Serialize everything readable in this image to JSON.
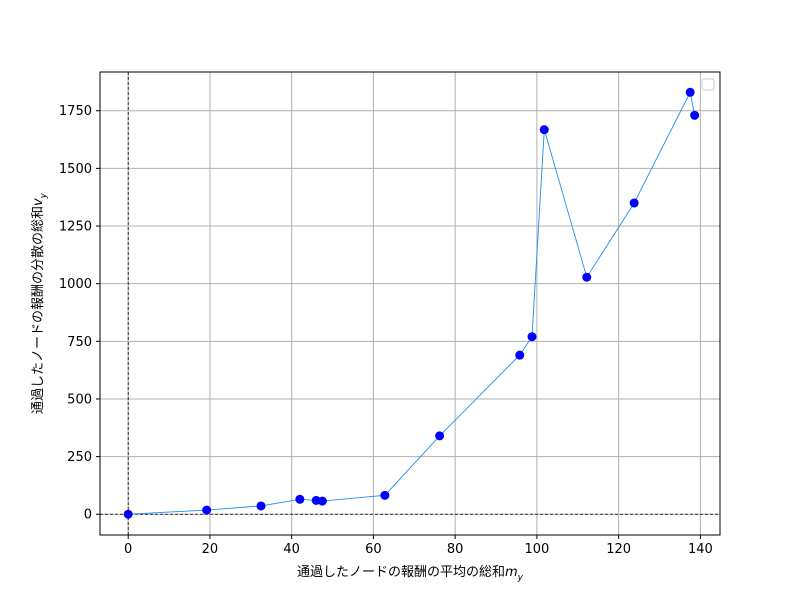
{
  "chart_data": {
    "type": "scatter",
    "title": "",
    "xlabel": "通過したノードの報酬の平均の総和",
    "xlabel_var": "m",
    "xlabel_sub": "y",
    "ylabel": "通過したノードの報酬の分散の総和",
    "ylabel_var": "v",
    "ylabel_sub": "y",
    "xlim": [
      -6.9,
      144.8
    ],
    "ylim": [
      -90,
      1918
    ],
    "xticks": [
      0,
      20,
      40,
      60,
      80,
      100,
      120,
      140
    ],
    "yticks": [
      0,
      250,
      500,
      750,
      1000,
      1250,
      1500,
      1750
    ],
    "grid": true,
    "legend": "top-right (empty)",
    "zero_lines": true,
    "line_color": "#1f8ef1",
    "point_color": "#0000ff",
    "points": [
      {
        "x": 0,
        "y": 0
      },
      {
        "x": 19.2,
        "y": 18
      },
      {
        "x": 32.5,
        "y": 36
      },
      {
        "x": 42,
        "y": 65
      },
      {
        "x": 46,
        "y": 60
      },
      {
        "x": 47.5,
        "y": 57
      },
      {
        "x": 62.8,
        "y": 82
      },
      {
        "x": 76.2,
        "y": 340
      },
      {
        "x": 95.8,
        "y": 690
      },
      {
        "x": 98.8,
        "y": 770
      },
      {
        "x": 101.8,
        "y": 1668
      },
      {
        "x": 112.2,
        "y": 1028
      },
      {
        "x": 123.8,
        "y": 1350
      },
      {
        "x": 137.5,
        "y": 1830
      },
      {
        "x": 138.6,
        "y": 1730
      }
    ]
  }
}
